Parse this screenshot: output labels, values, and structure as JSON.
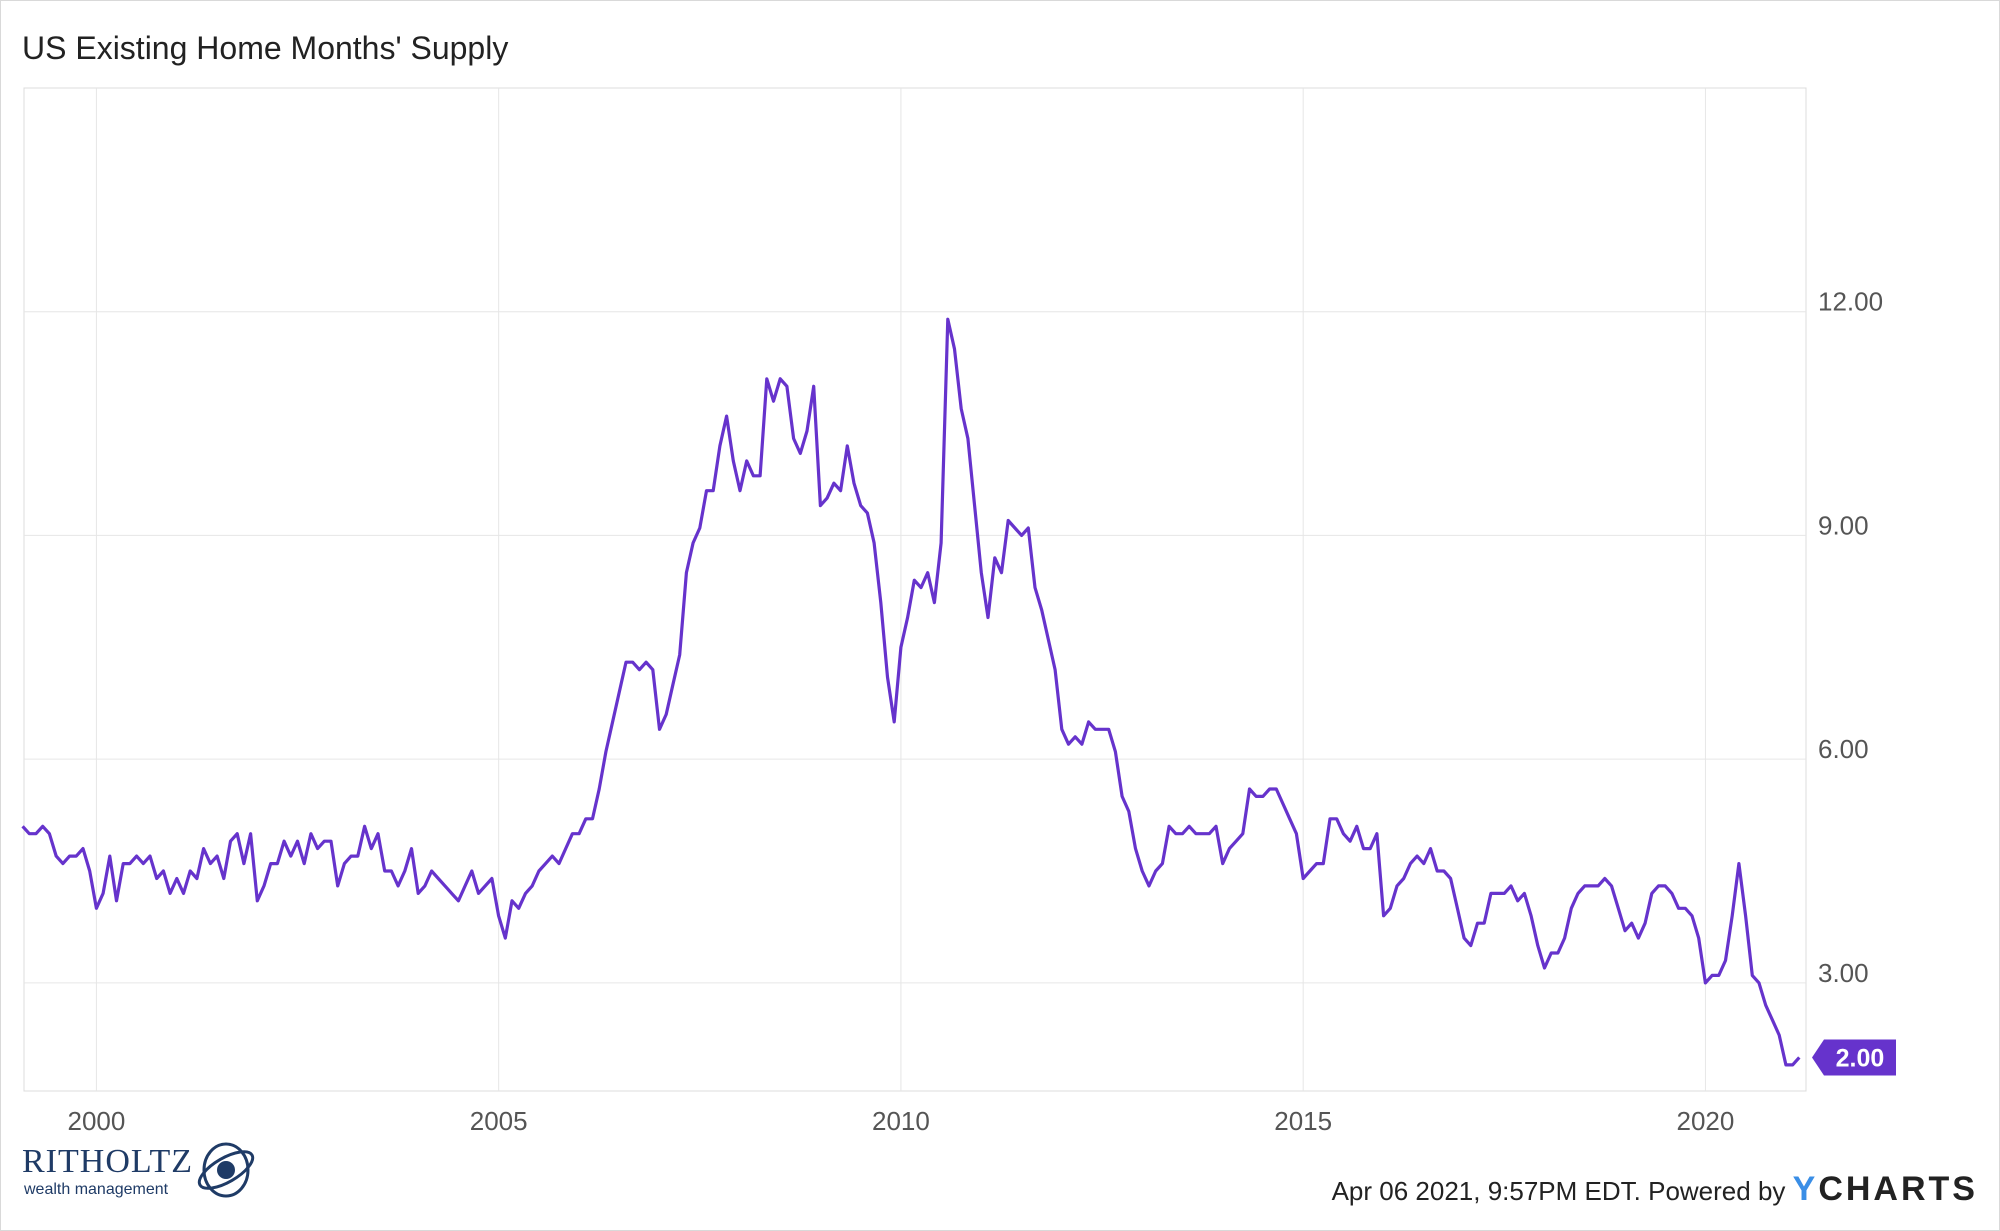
{
  "title": "US Existing Home Months' Supply",
  "footer": {
    "timestamp_text": "Apr 06 2021, 9:57PM EDT. Powered by",
    "brand_y": "Y",
    "brand_rest": "CHARTS"
  },
  "logo": {
    "name": "RITHOLTZ",
    "subtitle": "wealth management"
  },
  "colors": {
    "line": "#6633cc",
    "grid": "#e6e6e6",
    "axis_text": "#555555",
    "label_bg": "#6633cc"
  },
  "chart_data": {
    "type": "line",
    "title": "US Existing Home Months' Supply",
    "xlabel": "",
    "ylabel": "",
    "xlim": [
      1999.1,
      2021.25
    ],
    "ylim": [
      1.55,
      15.0
    ],
    "x_ticks": [
      2000,
      2005,
      2010,
      2015,
      2020
    ],
    "x_tick_labels": [
      "2000",
      "2005",
      "2010",
      "2015",
      "2020"
    ],
    "y_ticks": [
      3,
      6,
      9,
      12
    ],
    "y_tick_labels": [
      "3.00",
      "6.00",
      "9.00",
      "12.00"
    ],
    "grid": true,
    "last_value_label": "2.00",
    "series": [
      {
        "x_start": 1999.083,
        "x_step_months": 1,
        "values": [
          5.1,
          5.0,
          5.0,
          5.1,
          5.0,
          4.7,
          4.6,
          4.7,
          4.7,
          4.8,
          4.5,
          4.0,
          4.2,
          4.7,
          4.1,
          4.6,
          4.6,
          4.7,
          4.6,
          4.7,
          4.4,
          4.5,
          4.2,
          4.4,
          4.2,
          4.5,
          4.4,
          4.8,
          4.6,
          4.7,
          4.4,
          4.9,
          5.0,
          4.6,
          5.0,
          4.1,
          4.3,
          4.6,
          4.6,
          4.9,
          4.7,
          4.9,
          4.6,
          5.0,
          4.8,
          4.9,
          4.9,
          4.3,
          4.6,
          4.7,
          4.7,
          5.1,
          4.8,
          5.0,
          4.5,
          4.5,
          4.3,
          4.5,
          4.8,
          4.2,
          4.3,
          4.5,
          4.4,
          4.3,
          4.2,
          4.1,
          4.3,
          4.5,
          4.2,
          4.3,
          4.4,
          3.9,
          3.6,
          4.1,
          4.0,
          4.2,
          4.3,
          4.5,
          4.6,
          4.7,
          4.6,
          4.8,
          5.0,
          5.0,
          5.2,
          5.2,
          5.6,
          6.1,
          6.5,
          6.9,
          7.3,
          7.3,
          7.2,
          7.3,
          7.2,
          6.4,
          6.6,
          7.0,
          7.4,
          8.5,
          8.9,
          9.1,
          9.6,
          9.6,
          10.2,
          10.6,
          10.0,
          9.6,
          10.0,
          9.8,
          9.8,
          11.1,
          10.8,
          11.1,
          11.0,
          10.3,
          10.1,
          10.4,
          11.0,
          9.4,
          9.5,
          9.7,
          9.6,
          10.2,
          9.7,
          9.4,
          9.3,
          8.9,
          8.1,
          7.1,
          6.5,
          7.5,
          7.9,
          8.4,
          8.3,
          8.5,
          8.1,
          8.9,
          11.9,
          11.5,
          10.7,
          10.3,
          9.4,
          8.5,
          7.9,
          8.7,
          8.5,
          9.2,
          9.1,
          9.0,
          9.1,
          8.3,
          8.0,
          7.6,
          7.2,
          6.4,
          6.2,
          6.3,
          6.2,
          6.5,
          6.4,
          6.4,
          6.4,
          6.1,
          5.5,
          5.3,
          4.8,
          4.5,
          4.3,
          4.5,
          4.6,
          5.1,
          5.0,
          5.0,
          5.1,
          5.0,
          5.0,
          5.0,
          5.1,
          4.6,
          4.8,
          4.9,
          5.0,
          5.6,
          5.5,
          5.5,
          5.6,
          5.6,
          5.4,
          5.2,
          5.0,
          4.4,
          4.5,
          4.6,
          4.6,
          5.2,
          5.2,
          5.0,
          4.9,
          5.1,
          4.8,
          4.8,
          5.0,
          3.9,
          4.0,
          4.3,
          4.4,
          4.6,
          4.7,
          4.6,
          4.8,
          4.5,
          4.5,
          4.4,
          4.0,
          3.6,
          3.5,
          3.8,
          3.8,
          4.2,
          4.2,
          4.2,
          4.3,
          4.1,
          4.2,
          3.9,
          3.5,
          3.2,
          3.4,
          3.4,
          3.6,
          4.0,
          4.2,
          4.3,
          4.3,
          4.3,
          4.4,
          4.3,
          4.0,
          3.7,
          3.8,
          3.6,
          3.8,
          4.2,
          4.3,
          4.3,
          4.2,
          4.0,
          4.0,
          3.9,
          3.6,
          3.0,
          3.1,
          3.1,
          3.3,
          3.9,
          4.6,
          3.9,
          3.1,
          3.0,
          2.7,
          2.5,
          2.3,
          1.9,
          1.9,
          2.0
        ]
      }
    ]
  }
}
